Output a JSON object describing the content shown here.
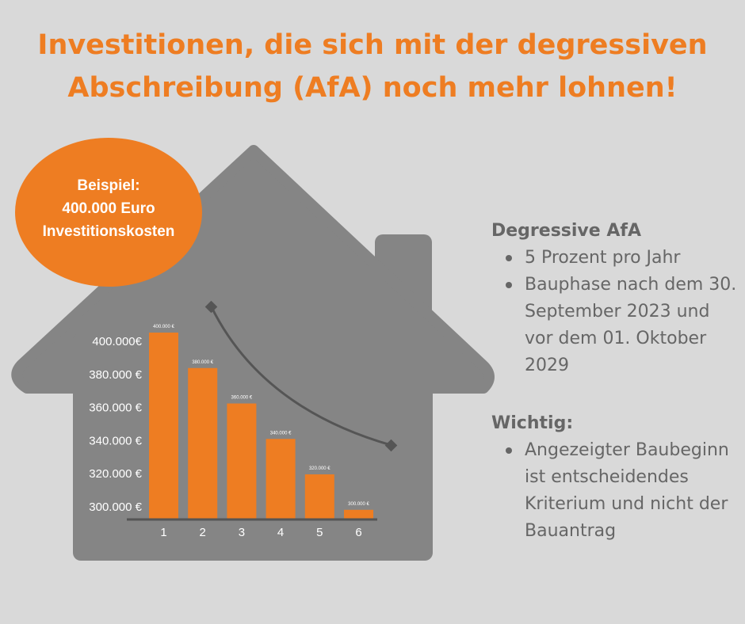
{
  "title": {
    "line1": "Investitionen, die sich mit der degressiven",
    "line2": "Abschreibung (AfA) noch mehr lohnen!"
  },
  "badge": {
    "line1": "Beispiel:",
    "line2": "400.000 Euro",
    "line3": "Investitionskosten"
  },
  "info": {
    "afa_heading": "Degressive AfA",
    "afa_items": [
      "5 Prozent pro Jahr",
      "Bauphase nach dem 30. September 2023 und vor dem 01. Oktober 2029"
    ],
    "wichtig_heading": "Wichtig:",
    "wichtig_items": [
      "Angezeigter Baubeginn ist entscheidendes Kriterium und nicht der Bauantrag"
    ]
  },
  "colors": {
    "background": "#d9d9d9",
    "house": "#858585",
    "accent": "#ee7d22",
    "text": "#666666",
    "arrow": "#555555"
  },
  "chart_data": {
    "type": "bar",
    "categories": [
      "1",
      "2",
      "3",
      "4",
      "5",
      "6"
    ],
    "values": [
      400000,
      380000,
      360000,
      340000,
      320000,
      300000
    ],
    "value_labels": [
      "400.000 €",
      "380.000 €",
      "360.000 €",
      "340.000 €",
      "320.000 €",
      "300.000 €"
    ],
    "yticks": [
      400000,
      380000,
      360000,
      340000,
      320000,
      300000
    ],
    "ytick_labels": [
      "400.000€",
      "380.000 €",
      "360.000 €",
      "340.000 €",
      "320.000 €",
      "300.000 €"
    ],
    "ylim": [
      295000,
      400000
    ],
    "title": "",
    "xlabel": "",
    "ylabel": "",
    "grid": false,
    "trend_arrow": "decreasing curve"
  }
}
